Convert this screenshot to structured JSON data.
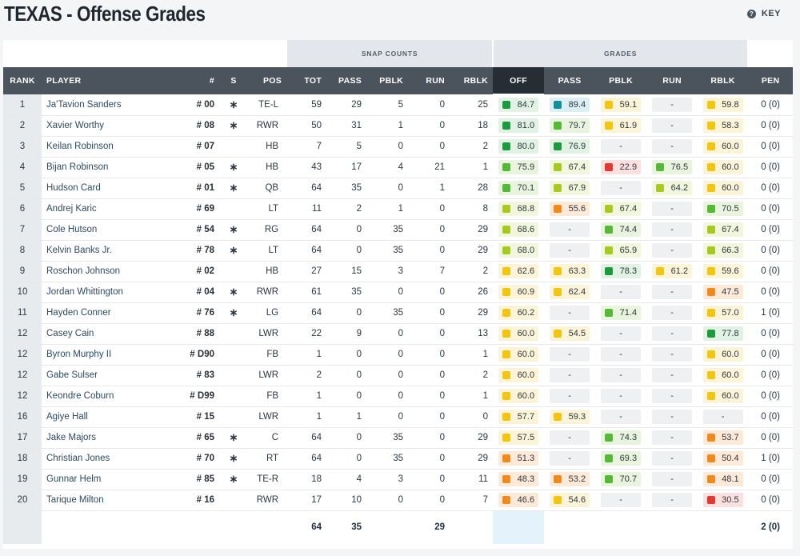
{
  "page": {
    "title": "TEXAS - Offense Grades",
    "key_label": "KEY"
  },
  "groups": {
    "snap_counts": "SNAP COUNTS",
    "grades": "GRADES"
  },
  "headers": [
    "RANK",
    "PLAYER",
    "#",
    "S",
    "POS",
    "TOT",
    "PASS",
    "PBLK",
    "RUN",
    "RBLK",
    "OFF",
    "PASS",
    "PBLK",
    "RUN",
    "RBLK",
    "PEN"
  ],
  "colors": {
    "header_bg": "#4b545d",
    "off_header_bg": "#262d34",
    "teal": "#138f9b",
    "dark_green": "#1e9a3e",
    "green": "#55b836",
    "light_green": "#a7c922",
    "yellow": "#f2c511",
    "orange": "#f08a1c",
    "red": "#e03a33"
  },
  "rows": [
    {
      "rank": "1",
      "player": "Ja'Tavion Sanders",
      "num": "00",
      "starter": true,
      "pos": "TE-L",
      "tot": "59",
      "pass": "29",
      "pblk": "5",
      "run": "0",
      "rblk": "25",
      "off": [
        "84.7",
        "dg"
      ],
      "gpass": [
        "89.4",
        "teal"
      ],
      "gpblk": [
        "59.1",
        "y"
      ],
      "grun": [
        "-",
        ""
      ],
      "grblk": [
        "59.8",
        "y"
      ],
      "pen": "0 (0)"
    },
    {
      "rank": "2",
      "player": "Xavier Worthy",
      "num": "08",
      "starter": true,
      "pos": "RWR",
      "tot": "50",
      "pass": "31",
      "pblk": "1",
      "run": "0",
      "rblk": "18",
      "off": [
        "81.0",
        "dg"
      ],
      "gpass": [
        "79.7",
        "g"
      ],
      "gpblk": [
        "61.9",
        "y"
      ],
      "grun": [
        "-",
        ""
      ],
      "grblk": [
        "58.3",
        "y"
      ],
      "pen": "0 (0)"
    },
    {
      "rank": "3",
      "player": "Keilan Robinson",
      "num": "07",
      "starter": false,
      "pos": "HB",
      "tot": "7",
      "pass": "5",
      "pblk": "0",
      "run": "0",
      "rblk": "2",
      "off": [
        "80.0",
        "dg"
      ],
      "gpass": [
        "76.9",
        "dg"
      ],
      "gpblk": [
        "-",
        ""
      ],
      "grun": [
        "-",
        ""
      ],
      "grblk": [
        "60.0",
        "y"
      ],
      "pen": "0 (0)"
    },
    {
      "rank": "4",
      "player": "Bijan Robinson",
      "num": "05",
      "starter": true,
      "pos": "HB",
      "tot": "43",
      "pass": "17",
      "pblk": "4",
      "run": "21",
      "rblk": "1",
      "off": [
        "75.9",
        "g"
      ],
      "gpass": [
        "67.4",
        "lg"
      ],
      "gpblk": [
        "22.9",
        "r"
      ],
      "grun": [
        "76.5",
        "g"
      ],
      "grblk": [
        "60.0",
        "y"
      ],
      "pen": "0 (0)"
    },
    {
      "rank": "5",
      "player": "Hudson Card",
      "num": "01",
      "starter": true,
      "pos": "QB",
      "tot": "64",
      "pass": "35",
      "pblk": "0",
      "run": "1",
      "rblk": "28",
      "off": [
        "70.1",
        "g"
      ],
      "gpass": [
        "67.9",
        "lg"
      ],
      "gpblk": [
        "-",
        ""
      ],
      "grun": [
        "64.2",
        "lg"
      ],
      "grblk": [
        "60.0",
        "y"
      ],
      "pen": "0 (0)"
    },
    {
      "rank": "6",
      "player": "Andrej Karic",
      "num": "69",
      "starter": false,
      "pos": "LT",
      "tot": "11",
      "pass": "2",
      "pblk": "1",
      "run": "0",
      "rblk": "8",
      "off": [
        "68.8",
        "lg"
      ],
      "gpass": [
        "55.6",
        "o"
      ],
      "gpblk": [
        "67.4",
        "lg"
      ],
      "grun": [
        "-",
        ""
      ],
      "grblk": [
        "70.5",
        "g"
      ],
      "pen": "0 (0)"
    },
    {
      "rank": "7",
      "player": "Cole Hutson",
      "num": "54",
      "starter": true,
      "pos": "RG",
      "tot": "64",
      "pass": "0",
      "pblk": "35",
      "run": "0",
      "rblk": "29",
      "off": [
        "68.6",
        "lg"
      ],
      "gpass": [
        "-",
        ""
      ],
      "gpblk": [
        "74.4",
        "g"
      ],
      "grun": [
        "-",
        ""
      ],
      "grblk": [
        "67.4",
        "lg"
      ],
      "pen": "0 (0)"
    },
    {
      "rank": "8",
      "player": "Kelvin Banks Jr.",
      "num": "78",
      "starter": true,
      "pos": "LT",
      "tot": "64",
      "pass": "0",
      "pblk": "35",
      "run": "0",
      "rblk": "29",
      "off": [
        "68.0",
        "lg"
      ],
      "gpass": [
        "-",
        ""
      ],
      "gpblk": [
        "65.9",
        "lg"
      ],
      "grun": [
        "-",
        ""
      ],
      "grblk": [
        "66.3",
        "lg"
      ],
      "pen": "0 (0)"
    },
    {
      "rank": "9",
      "player": "Roschon Johnson",
      "num": "02",
      "starter": false,
      "pos": "HB",
      "tot": "27",
      "pass": "15",
      "pblk": "3",
      "run": "7",
      "rblk": "2",
      "off": [
        "62.6",
        "y"
      ],
      "gpass": [
        "63.3",
        "y"
      ],
      "gpblk": [
        "78.3",
        "dg"
      ],
      "grun": [
        "61.2",
        "y"
      ],
      "grblk": [
        "59.6",
        "y"
      ],
      "pen": "0 (0)"
    },
    {
      "rank": "10",
      "player": "Jordan Whittington",
      "num": "04",
      "starter": true,
      "pos": "RWR",
      "tot": "61",
      "pass": "35",
      "pblk": "0",
      "run": "0",
      "rblk": "26",
      "off": [
        "60.9",
        "y"
      ],
      "gpass": [
        "62.4",
        "y"
      ],
      "gpblk": [
        "-",
        ""
      ],
      "grun": [
        "-",
        ""
      ],
      "grblk": [
        "47.5",
        "o"
      ],
      "pen": "0 (0)"
    },
    {
      "rank": "11",
      "player": "Hayden Conner",
      "num": "76",
      "starter": true,
      "pos": "LG",
      "tot": "64",
      "pass": "0",
      "pblk": "35",
      "run": "0",
      "rblk": "29",
      "off": [
        "60.2",
        "y"
      ],
      "gpass": [
        "-",
        ""
      ],
      "gpblk": [
        "71.4",
        "g"
      ],
      "grun": [
        "-",
        ""
      ],
      "grblk": [
        "57.0",
        "y"
      ],
      "pen": "1 (0)"
    },
    {
      "rank": "12",
      "player": "Casey Cain",
      "num": "88",
      "starter": false,
      "pos": "LWR",
      "tot": "22",
      "pass": "9",
      "pblk": "0",
      "run": "0",
      "rblk": "13",
      "off": [
        "60.0",
        "y"
      ],
      "gpass": [
        "54.5",
        "y"
      ],
      "gpblk": [
        "-",
        ""
      ],
      "grun": [
        "-",
        ""
      ],
      "grblk": [
        "77.8",
        "dg"
      ],
      "pen": "0 (0)"
    },
    {
      "rank": "12",
      "player": "Byron Murphy II",
      "num": "D90",
      "starter": false,
      "pos": "FB",
      "tot": "1",
      "pass": "0",
      "pblk": "0",
      "run": "0",
      "rblk": "1",
      "off": [
        "60.0",
        "y"
      ],
      "gpass": [
        "-",
        ""
      ],
      "gpblk": [
        "-",
        ""
      ],
      "grun": [
        "-",
        ""
      ],
      "grblk": [
        "60.0",
        "y"
      ],
      "pen": "0 (0)"
    },
    {
      "rank": "12",
      "player": "Gabe Sulser",
      "num": "83",
      "starter": false,
      "pos": "LWR",
      "tot": "2",
      "pass": "0",
      "pblk": "0",
      "run": "0",
      "rblk": "2",
      "off": [
        "60.0",
        "y"
      ],
      "gpass": [
        "-",
        ""
      ],
      "gpblk": [
        "-",
        ""
      ],
      "grun": [
        "-",
        ""
      ],
      "grblk": [
        "60.0",
        "y"
      ],
      "pen": "0 (0)"
    },
    {
      "rank": "12",
      "player": "Keondre Coburn",
      "num": "D99",
      "starter": false,
      "pos": "FB",
      "tot": "1",
      "pass": "0",
      "pblk": "0",
      "run": "0",
      "rblk": "1",
      "off": [
        "60.0",
        "y"
      ],
      "gpass": [
        "-",
        ""
      ],
      "gpblk": [
        "-",
        ""
      ],
      "grun": [
        "-",
        ""
      ],
      "grblk": [
        "60.0",
        "y"
      ],
      "pen": "0 (0)"
    },
    {
      "rank": "16",
      "player": "Agiye Hall",
      "num": "15",
      "starter": false,
      "pos": "LWR",
      "tot": "1",
      "pass": "1",
      "pblk": "0",
      "run": "0",
      "rblk": "0",
      "off": [
        "57.7",
        "y"
      ],
      "gpass": [
        "59.3",
        "y"
      ],
      "gpblk": [
        "-",
        ""
      ],
      "grun": [
        "-",
        ""
      ],
      "grblk": [
        "-",
        ""
      ],
      "pen": "0 (0)"
    },
    {
      "rank": "17",
      "player": "Jake Majors",
      "num": "65",
      "starter": true,
      "pos": "C",
      "tot": "64",
      "pass": "0",
      "pblk": "35",
      "run": "0",
      "rblk": "29",
      "off": [
        "57.5",
        "y"
      ],
      "gpass": [
        "-",
        ""
      ],
      "gpblk": [
        "74.3",
        "g"
      ],
      "grun": [
        "-",
        ""
      ],
      "grblk": [
        "53.7",
        "o"
      ],
      "pen": "0 (0)"
    },
    {
      "rank": "18",
      "player": "Christian Jones",
      "num": "70",
      "starter": true,
      "pos": "RT",
      "tot": "64",
      "pass": "0",
      "pblk": "35",
      "run": "0",
      "rblk": "29",
      "off": [
        "51.3",
        "o"
      ],
      "gpass": [
        "-",
        ""
      ],
      "gpblk": [
        "69.3",
        "g"
      ],
      "grun": [
        "-",
        ""
      ],
      "grblk": [
        "50.4",
        "o"
      ],
      "pen": "1 (0)"
    },
    {
      "rank": "19",
      "player": "Gunnar Helm",
      "num": "85",
      "starter": true,
      "pos": "TE-R",
      "tot": "18",
      "pass": "4",
      "pblk": "3",
      "run": "0",
      "rblk": "11",
      "off": [
        "48.3",
        "o"
      ],
      "gpass": [
        "53.2",
        "o"
      ],
      "gpblk": [
        "70.7",
        "g"
      ],
      "grun": [
        "-",
        ""
      ],
      "grblk": [
        "48.1",
        "o"
      ],
      "pen": "0 (0)"
    },
    {
      "rank": "20",
      "player": "Tarique Milton",
      "num": "16",
      "starter": false,
      "pos": "RWR",
      "tot": "17",
      "pass": "10",
      "pblk": "0",
      "run": "0",
      "rblk": "7",
      "off": [
        "46.6",
        "o"
      ],
      "gpass": [
        "54.6",
        "y"
      ],
      "gpblk": [
        "-",
        ""
      ],
      "grun": [
        "-",
        ""
      ],
      "grblk": [
        "30.5",
        "r"
      ],
      "pen": "0 (0)"
    }
  ],
  "totals": {
    "tot": "64",
    "pass": "35",
    "run": "29",
    "pen": "2 (0)"
  }
}
